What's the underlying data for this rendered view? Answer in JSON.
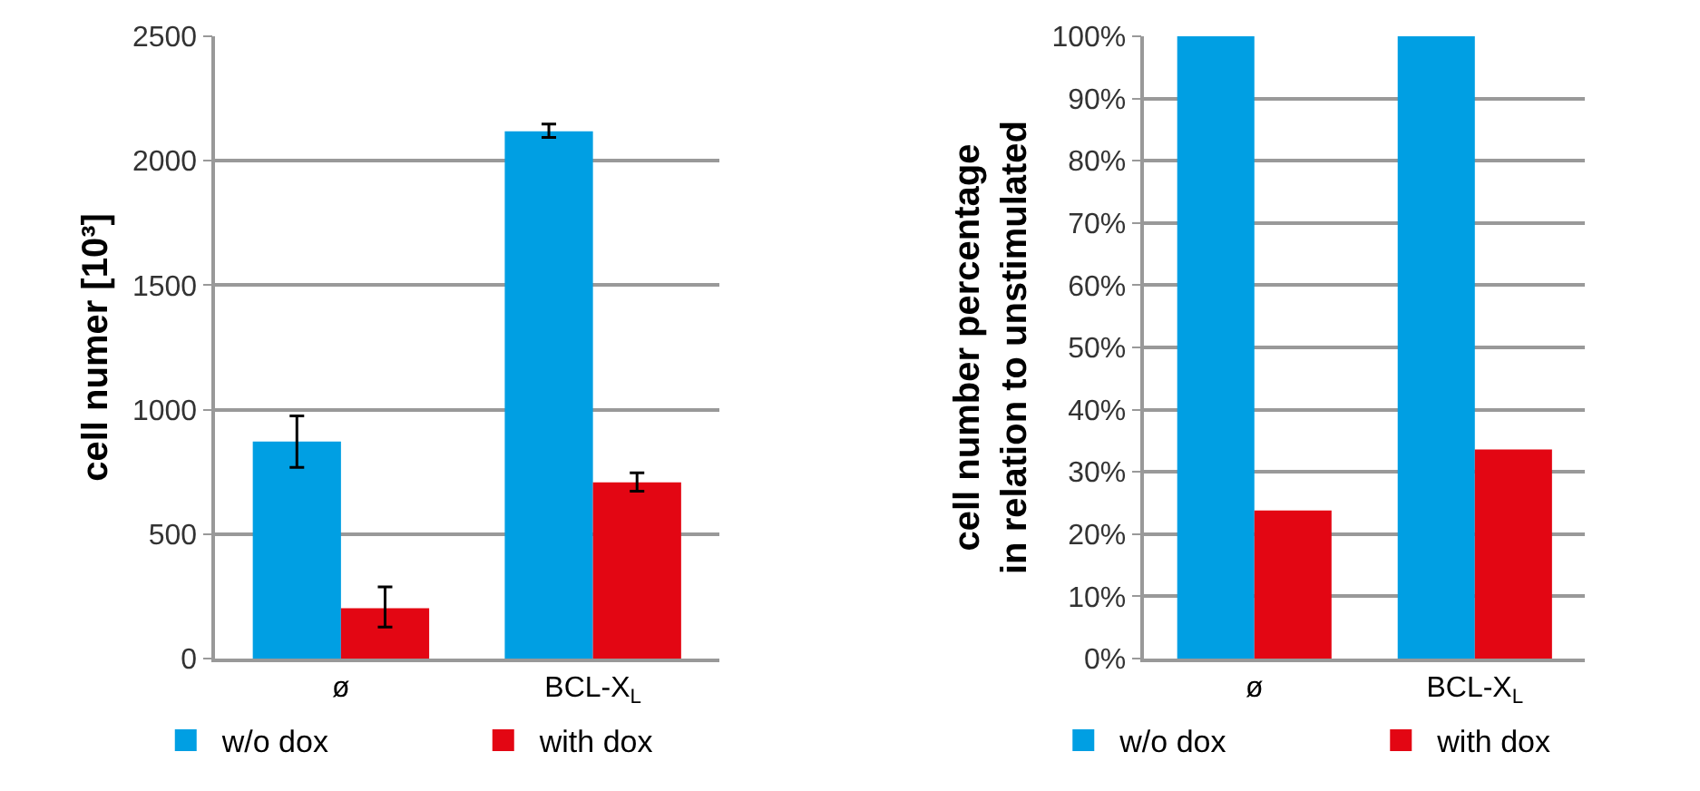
{
  "chart_data": [
    {
      "type": "bar",
      "ylabel": "cell numer [10³]",
      "categories": [
        "ø",
        "BCL-X$_{L}$"
      ],
      "series": [
        {
          "name": "w/o dox",
          "color": "#009fe3",
          "values": [
            872,
            2118
          ],
          "errors": [
            [
              768,
              975
            ],
            [
              2094,
              2147
            ]
          ]
        },
        {
          "name": "with dox",
          "color": "#e30613",
          "values": [
            202,
            708
          ],
          "errors": [
            [
              127,
              288
            ],
            [
              672,
              746
            ]
          ]
        }
      ],
      "ylim": [
        0,
        2500
      ],
      "yticks": [
        0,
        500,
        1000,
        1500,
        2000,
        2500
      ],
      "grid": "y",
      "legend": "bottom"
    },
    {
      "type": "bar",
      "ylabel": "cell number percentage\nin relation to unstimulated",
      "categories": [
        "ø",
        "BCL-X$_{L}$"
      ],
      "series": [
        {
          "name": "w/o dox",
          "color": "#009fe3",
          "values": [
            100,
            100
          ]
        },
        {
          "name": "with dox",
          "color": "#e30613",
          "values": [
            23.8,
            33.6
          ]
        }
      ],
      "ylim": [
        0,
        100
      ],
      "yticks": [
        {
          "value": 0,
          "label": "0%"
        },
        {
          "value": 10,
          "label": "10%"
        },
        {
          "value": 20,
          "label": "20%"
        },
        {
          "value": 30,
          "label": "30%"
        },
        {
          "value": 40,
          "label": "40%"
        },
        {
          "value": 50,
          "label": "50%"
        },
        {
          "value": 60,
          "label": "60%"
        },
        {
          "value": 70,
          "label": "70%"
        },
        {
          "value": 80,
          "label": "80%"
        },
        {
          "value": 90,
          "label": "90%"
        },
        {
          "value": 100,
          "label": "100%"
        }
      ],
      "grid": "y",
      "legend": "bottom"
    }
  ]
}
